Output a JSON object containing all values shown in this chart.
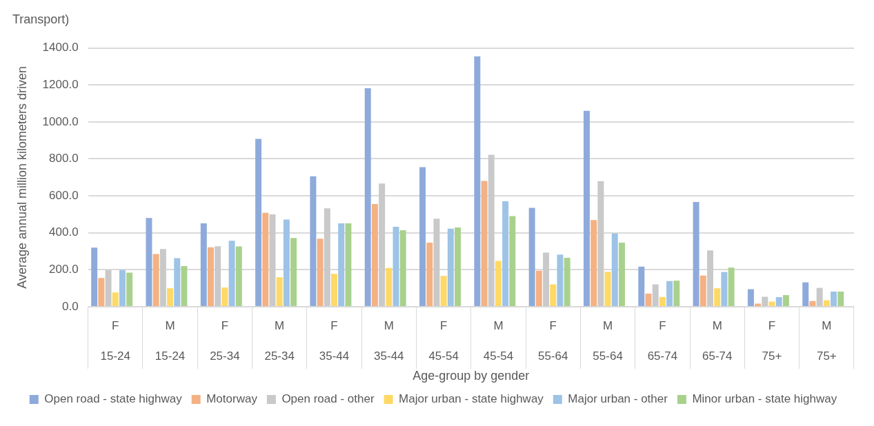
{
  "chart_data": {
    "type": "bar",
    "title": "Transport)",
    "xlabel": "Age-group by gender",
    "ylabel": "Average annual million kilometers driven",
    "categories": [
      "F 15-24",
      "M 15-24",
      "F 25-34",
      "M 25-34",
      "F 35-44",
      "M 35-44",
      "F 45-54",
      "M 45-54",
      "F 55-64",
      "M 55-64",
      "F 65-74",
      "M 65-74",
      "F 75+",
      "M 75+"
    ],
    "series": [
      {
        "name": "Open road - state highway",
        "color": "#8eaadb",
        "values": [
          320,
          480,
          451,
          908,
          706,
          1182,
          755,
          1355,
          535,
          1060,
          217,
          567,
          95,
          132
        ]
      },
      {
        "name": "Motorway",
        "color": "#f4b183",
        "values": [
          156,
          285,
          322,
          508,
          368,
          556,
          347,
          681,
          195,
          469,
          71,
          169,
          17,
          31
        ]
      },
      {
        "name": "Open road - other",
        "color": "#c9c9c9",
        "values": [
          198,
          312,
          327,
          500,
          532,
          667,
          476,
          822,
          293,
          680,
          121,
          305,
          54,
          102
        ]
      },
      {
        "name": "Major urban - state highway",
        "color": "#ffd966",
        "values": [
          77,
          100,
          104,
          160,
          178,
          210,
          167,
          248,
          121,
          189,
          53,
          100,
          28,
          35
        ]
      },
      {
        "name": "Major urban - other",
        "color": "#9dc3e6",
        "values": [
          199,
          263,
          357,
          472,
          451,
          433,
          422,
          571,
          282,
          396,
          139,
          188,
          52,
          82
        ]
      },
      {
        "name": "Minor urban - state highway",
        "color": "#a9d18e",
        "values": [
          185,
          220,
          326,
          372,
          451,
          414,
          429,
          490,
          265,
          347,
          141,
          212,
          63,
          82
        ]
      },
      {
        "color": "#8497b0",
        "values": [
          0,
          0,
          0,
          0,
          0,
          0,
          0,
          0,
          0,
          0,
          0,
          0,
          0,
          0
        ]
      }
    ],
    "ylim": [
      0,
      1400
    ],
    "yticks": [
      {
        "value": 0,
        "label": "0.0"
      },
      {
        "value": 200,
        "label": "200.0"
      },
      {
        "value": 400,
        "label": "400.0"
      },
      {
        "value": 600,
        "label": "600.0"
      },
      {
        "value": 800,
        "label": "800.0"
      },
      {
        "value": 1000,
        "label": "1000.0"
      },
      {
        "value": 1200,
        "label": "1200.0"
      },
      {
        "value": 1400,
        "label": "1400.0"
      }
    ],
    "grid": "y",
    "legend": "bottom"
  }
}
